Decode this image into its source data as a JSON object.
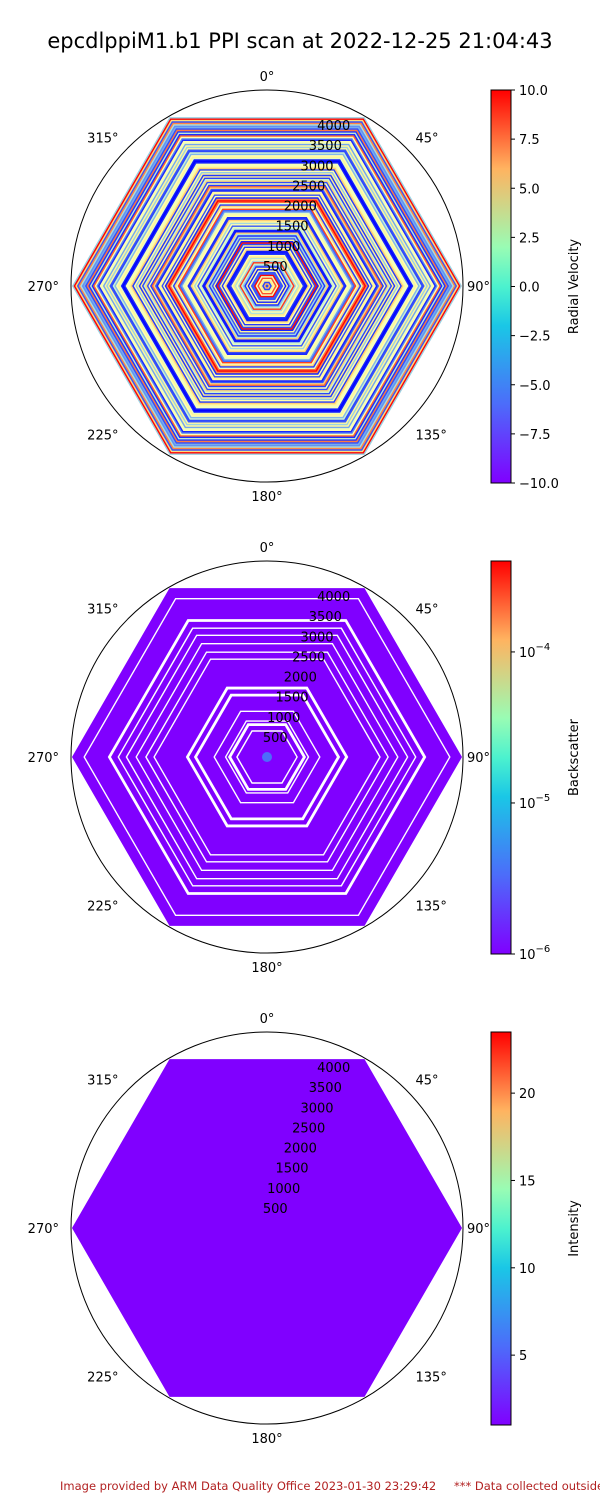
{
  "title": "epcdlppiM1.b1 PPI scan at 2022-12-25 21:04:43",
  "footer_left": "Image provided by ARM Data Quality Office 2023-01-30 23:29:42",
  "footer_right": "*** Data collected outside",
  "chart_data": [
    {
      "type": "heatmap",
      "projection": "polar",
      "variable": "Radial Velocity",
      "angle_ticks": [
        "0°",
        "45°",
        "90°",
        "135°",
        "180°",
        "225°",
        "270°",
        "315°"
      ],
      "range_ticks": [
        500,
        1000,
        1500,
        2000,
        2500,
        3000,
        3500,
        4000
      ],
      "rlim": [
        0,
        4500
      ],
      "colorbar": {
        "label": "Radial Velocity",
        "scale": "linear",
        "range": [
          -10.0,
          10.0
        ],
        "ticks": [
          10.0,
          7.5,
          5.0,
          2.5,
          0.0,
          -2.5,
          -5.0,
          -7.5,
          -10.0
        ],
        "tick_labels": [
          "10.0",
          "7.5",
          "5.0",
          "2.5",
          "0.0",
          "−2.5",
          "−5.0",
          "−7.5",
          "−10.0"
        ],
        "colormap": "rainbow"
      },
      "pattern": "mixed"
    },
    {
      "type": "heatmap",
      "projection": "polar",
      "variable": "Backscatter",
      "angle_ticks": [
        "0°",
        "45°",
        "90°",
        "135°",
        "180°",
        "225°",
        "270°",
        "315°"
      ],
      "range_ticks": [
        500,
        1000,
        1500,
        2000,
        2500,
        3000,
        3500,
        4000
      ],
      "rlim": [
        0,
        4500
      ],
      "colorbar": {
        "label": "Backscatter",
        "scale": "log",
        "range": [
          1e-06,
          0.0004
        ],
        "ticks": [
          0.0001,
          1e-05,
          1e-06
        ],
        "tick_labels": [
          "10",
          "10",
          "10"
        ],
        "tick_exponents": [
          "−4",
          "−5",
          "−6"
        ],
        "colormap": "rainbow"
      },
      "pattern": "low_with_gaps"
    },
    {
      "type": "heatmap",
      "projection": "polar",
      "variable": "Intensity",
      "angle_ticks": [
        "0°",
        "45°",
        "90°",
        "135°",
        "180°",
        "225°",
        "270°",
        "315°"
      ],
      "range_ticks": [
        500,
        1000,
        1500,
        2000,
        2500,
        3000,
        3500,
        4000
      ],
      "rlim": [
        0,
        4500
      ],
      "colorbar": {
        "label": "Intensity",
        "scale": "linear",
        "range": [
          1.0,
          23.5
        ],
        "ticks": [
          20,
          15,
          10,
          5
        ],
        "tick_labels": [
          "20",
          "15",
          "10",
          "5"
        ],
        "colormap": "rainbow"
      },
      "pattern": "uniform_low"
    }
  ]
}
